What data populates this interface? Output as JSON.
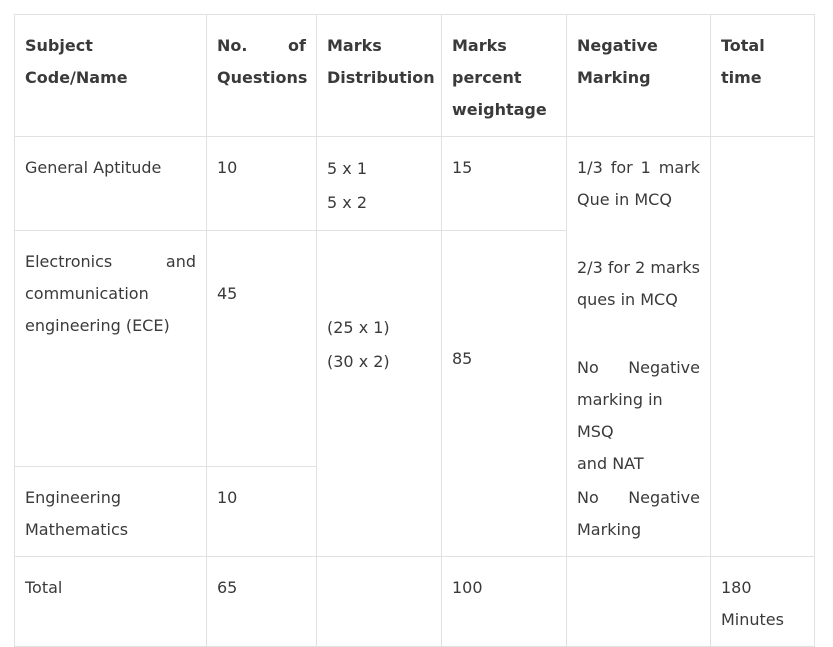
{
  "headers": {
    "subject": "Subject Code/Name",
    "questions_a": "No.",
    "questions_b": "of",
    "questions_c": "Questions",
    "marks_dist_a": "Marks",
    "marks_dist_b": "Distribution",
    "weight_a": "Marks",
    "weight_b": "percent",
    "weight_c": "weightage",
    "neg_a": "Negative",
    "neg_b": "Marking",
    "time": "Total time"
  },
  "rows": {
    "ga": {
      "subject": "General Aptitude",
      "questions": "10",
      "dist_1": "5 x 1",
      "dist_2": "5 x 2",
      "weight": "15"
    },
    "ece": {
      "subject_a": "Electronics",
      "subject_b": "and",
      "subject_c": "communication",
      "subject_d": "engineering (ECE)",
      "questions": "45",
      "dist_1": "(25 x 1)",
      "dist_2": "(30 x 2)",
      "weight": "85"
    },
    "em": {
      "subject_a": "Engineering",
      "subject_b": "Mathematics",
      "questions": "10"
    },
    "total": {
      "subject": "Total",
      "questions": "65",
      "weight": "100",
      "time_a": "180",
      "time_b": "Minutes"
    }
  },
  "negative": {
    "l1a": "1/3",
    "l1b": "for",
    "l1c": "1",
    "l1d": "mark",
    "l2": "Que in MCQ",
    "l3a": "2/3",
    "l3b": "for",
    "l3c": "2",
    "l3d": "marks",
    "l4": "ques in MCQ",
    "l5a": "No",
    "l5b": "Negative",
    "l6": "marking in MSQ",
    "l7": "and NAT",
    "l8a": "No",
    "l8b": "Negative",
    "l9": "Marking"
  }
}
